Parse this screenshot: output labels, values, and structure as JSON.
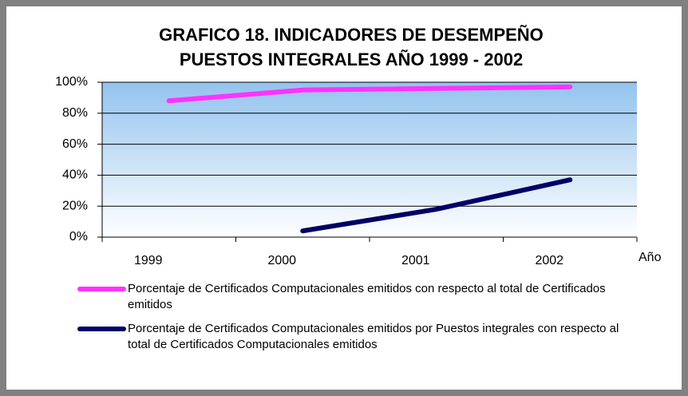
{
  "chart_data": {
    "type": "line",
    "title": "GRAFICO 18. INDICADORES DE DESEMPEÑO",
    "subtitle": "PUESTOS INTEGRALES AÑO 1999 - 2002",
    "x_label": "Año",
    "categories": [
      "1999",
      "2000",
      "2001",
      "2002"
    ],
    "series": [
      {
        "name": "Porcentaje de Certificados Computacionales emitidos con respecto al total de Certificados emitidos",
        "color": "#ff33ff",
        "values": [
          88,
          95,
          96,
          97
        ]
      },
      {
        "name": "Porcentaje de Certificados Computacionales emitidos por Puestos integrales con respecto al total de Certificados Computacionales emitidos",
        "color": "#000066",
        "values": [
          null,
          4,
          18,
          37
        ]
      }
    ],
    "ylim": [
      0,
      100
    ],
    "yticks": [
      {
        "value": 0,
        "label": "0%"
      },
      {
        "value": 20,
        "label": "20%"
      },
      {
        "value": 40,
        "label": "40%"
      },
      {
        "value": 60,
        "label": "60%"
      },
      {
        "value": 80,
        "label": "80%"
      },
      {
        "value": 100,
        "label": "100%"
      }
    ],
    "grid": true,
    "legend": "bottom"
  }
}
